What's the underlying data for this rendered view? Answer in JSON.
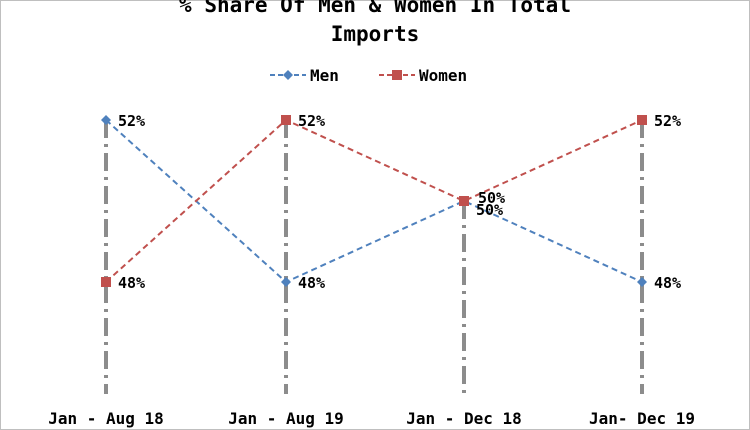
{
  "chart_data": {
    "type": "line",
    "title_line1": "% Share Of Men & Women In Total",
    "title_line2": "Imports",
    "categories": [
      "Jan - Aug 18",
      "Jan - Aug 19",
      "Jan - Dec 18",
      "Jan- Dec 19"
    ],
    "series": [
      {
        "name": "Men",
        "color": "#4f81bd",
        "marker": "diamond",
        "values": [
          52,
          48,
          50,
          48
        ],
        "labels": [
          "52%",
          "48%",
          "50%",
          "48%"
        ]
      },
      {
        "name": "Women",
        "color": "#c0504d",
        "marker": "square",
        "values": [
          48,
          52,
          50,
          52
        ],
        "labels": [
          "48%",
          "52%",
          "50%",
          "52%"
        ]
      }
    ],
    "ylim": [
      48,
      52
    ],
    "xlabel": "",
    "ylabel": "",
    "legend_position": "top-center",
    "grid": false
  }
}
